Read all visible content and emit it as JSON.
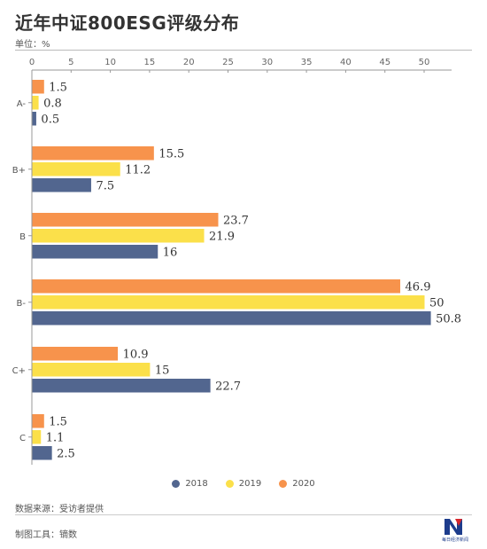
{
  "header": {
    "title": "近年中证800ESG评级分布",
    "unit": "单位：%"
  },
  "footer": {
    "source": "数据来源：受访者提供",
    "tool": "制图工具：镝数"
  },
  "logo": {
    "icon": "newspaper-logo",
    "text": "每日经济新闻"
  },
  "chart_data": {
    "type": "bar",
    "orientation": "horizontal",
    "categories": [
      "A-",
      "B+",
      "B",
      "B-",
      "C+",
      "C"
    ],
    "series": [
      {
        "name": "2020",
        "color": "#f7934c",
        "values": [
          1.5,
          15.5,
          23.7,
          46.9,
          10.9,
          1.5
        ]
      },
      {
        "name": "2019",
        "color": "#fbe04a",
        "values": [
          0.8,
          11.2,
          21.9,
          50,
          15,
          1.1
        ]
      },
      {
        "name": "2018",
        "color": "#52668f",
        "values": [
          0.5,
          7.5,
          16,
          50.8,
          22.7,
          2.5
        ]
      }
    ],
    "legend_order": [
      "2018",
      "2019",
      "2020"
    ],
    "xlim": [
      0,
      50
    ],
    "xticks": [
      0,
      5,
      10,
      15,
      20,
      25,
      30,
      35,
      40,
      45,
      50
    ],
    "x_axis_position": "top",
    "grid": false,
    "legend_position": "bottom"
  }
}
